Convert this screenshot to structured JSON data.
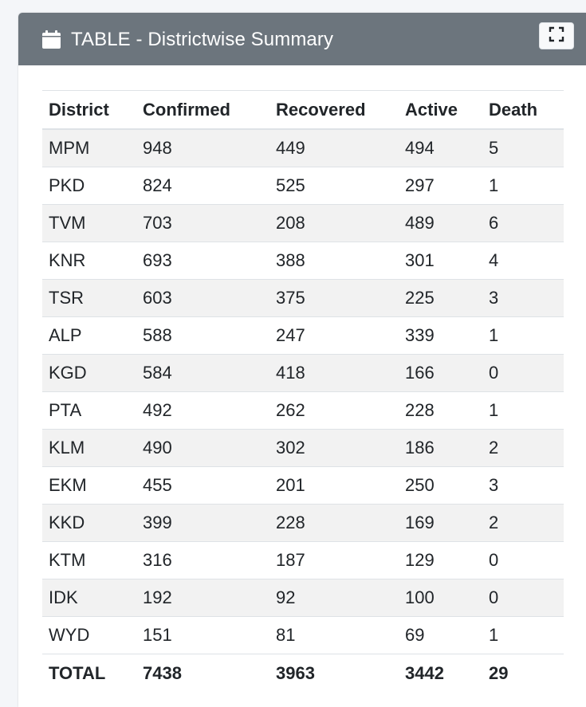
{
  "header": {
    "title": "TABLE - Districtwise Summary",
    "icon": "calendar-icon",
    "fullscreen_icon": "expand-icon"
  },
  "table": {
    "columns": [
      "District",
      "Confirmed",
      "Recovered",
      "Active",
      "Death"
    ],
    "rows": [
      [
        "MPM",
        "948",
        "449",
        "494",
        "5"
      ],
      [
        "PKD",
        "824",
        "525",
        "297",
        "1"
      ],
      [
        "TVM",
        "703",
        "208",
        "489",
        "6"
      ],
      [
        "KNR",
        "693",
        "388",
        "301",
        "4"
      ],
      [
        "TSR",
        "603",
        "375",
        "225",
        "3"
      ],
      [
        "ALP",
        "588",
        "247",
        "339",
        "1"
      ],
      [
        "KGD",
        "584",
        "418",
        "166",
        "0"
      ],
      [
        "PTA",
        "492",
        "262",
        "228",
        "1"
      ],
      [
        "KLM",
        "490",
        "302",
        "186",
        "2"
      ],
      [
        "EKM",
        "455",
        "201",
        "250",
        "3"
      ],
      [
        "KKD",
        "399",
        "228",
        "169",
        "2"
      ],
      [
        "KTM",
        "316",
        "187",
        "129",
        "0"
      ],
      [
        "IDK",
        "192",
        "92",
        "100",
        "0"
      ],
      [
        "WYD",
        "151",
        "81",
        "69",
        "1"
      ]
    ],
    "total": [
      "TOTAL",
      "7438",
      "3963",
      "3442",
      "29"
    ]
  },
  "colors": {
    "header_bg": "#6c757d",
    "stripe": "#f2f2f2"
  }
}
